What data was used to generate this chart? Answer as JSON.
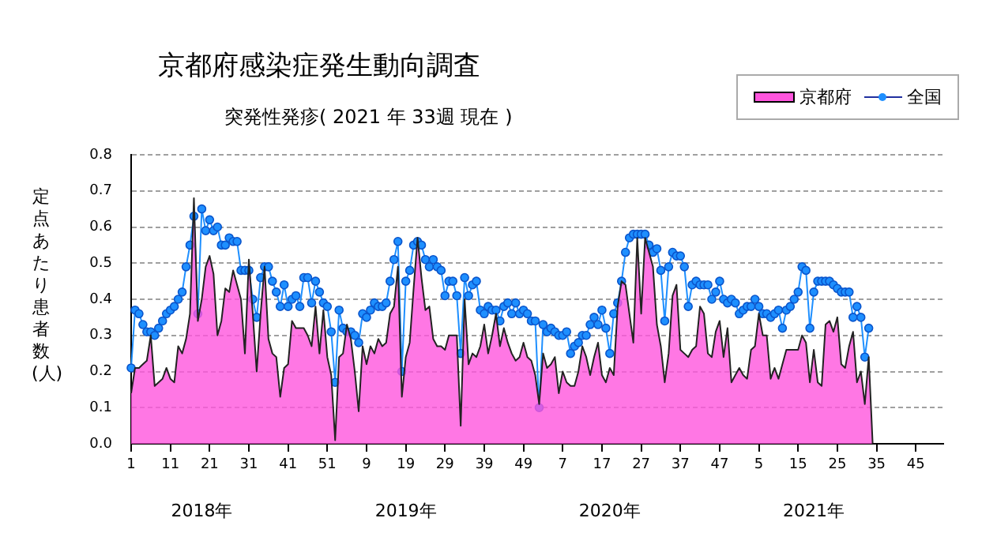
{
  "chart_data": {
    "type": "area",
    "title": "京都府感染症発生動向調査",
    "subtitle": "突発性発疹( 2021 年 33週 現在 )",
    "ylabel": "定点あたり患者数(人)",
    "categories": [
      "1",
      null,
      null,
      null,
      null,
      null,
      null,
      null,
      null,
      null,
      "11",
      null,
      null,
      null,
      null,
      null,
      null,
      null,
      null,
      null,
      "21",
      null,
      null,
      null,
      null,
      null,
      null,
      null,
      null,
      null,
      "31",
      null,
      null,
      null,
      null,
      null,
      null,
      null,
      null,
      null,
      "41",
      null,
      null,
      null,
      null,
      null,
      null,
      null,
      null,
      null,
      "51",
      null,
      null,
      null,
      null,
      null,
      null,
      null,
      null,
      null,
      "9",
      null,
      null,
      null,
      null,
      null,
      null,
      null,
      null,
      null,
      "19",
      null,
      null,
      null,
      null,
      null,
      null,
      null,
      null,
      null,
      "29",
      null,
      null,
      null,
      null,
      null,
      null,
      null,
      null,
      null,
      "39",
      null,
      null,
      null,
      null,
      null,
      null,
      null,
      null,
      null,
      "49",
      null,
      null,
      null,
      null,
      null,
      null,
      null,
      null,
      null,
      "7",
      null,
      null,
      null,
      null,
      null,
      null,
      null,
      null,
      null,
      "17",
      null,
      null,
      null,
      null,
      null,
      null,
      null,
      null,
      null,
      "27",
      null,
      null,
      null,
      null,
      null,
      null,
      null,
      null,
      null,
      "37",
      null,
      null,
      null,
      null,
      null,
      null,
      null,
      null,
      null,
      "47",
      null,
      null,
      null,
      null,
      null,
      null,
      null,
      null,
      null,
      "5",
      null,
      null,
      null,
      null,
      null,
      null,
      null,
      null,
      null,
      "15",
      null,
      null,
      null,
      null,
      null,
      null,
      null,
      null,
      null,
      "25",
      null,
      null,
      null,
      null,
      null,
      null,
      null,
      null,
      null,
      "35",
      null,
      null,
      null,
      null,
      null,
      null,
      null,
      null,
      null,
      "45",
      null,
      null,
      null,
      null,
      null,
      null,
      null
    ],
    "series": [
      {
        "name": "京都府",
        "type": "area",
        "color": "#ff55dd",
        "values": [
          0.14,
          0.21,
          0.21,
          0.22,
          0.23,
          0.3,
          0.16,
          0.17,
          0.18,
          0.21,
          0.18,
          0.17,
          0.27,
          0.25,
          0.29,
          0.36,
          0.68,
          0.34,
          0.4,
          0.49,
          0.52,
          0.47,
          0.3,
          0.34,
          0.43,
          0.42,
          0.48,
          0.44,
          0.4,
          0.25,
          0.51,
          0.36,
          0.2,
          0.36,
          0.49,
          0.29,
          0.25,
          0.24,
          0.13,
          0.21,
          0.22,
          0.34,
          0.32,
          0.32,
          0.32,
          0.3,
          0.27,
          0.38,
          0.25,
          0.37,
          0.24,
          0.19,
          0.01,
          0.24,
          0.25,
          0.33,
          0.29,
          0.2,
          0.09,
          0.27,
          0.22,
          0.27,
          0.25,
          0.29,
          0.27,
          0.28,
          0.36,
          0.38,
          0.49,
          0.13,
          0.24,
          0.28,
          0.43,
          0.57,
          0.46,
          0.37,
          0.38,
          0.29,
          0.27,
          0.27,
          0.26,
          0.3,
          0.3,
          0.3,
          0.05,
          0.4,
          0.22,
          0.25,
          0.24,
          0.27,
          0.33,
          0.25,
          0.3,
          0.36,
          0.27,
          0.32,
          0.28,
          0.25,
          0.23,
          0.24,
          0.28,
          0.24,
          0.23,
          0.19,
          0.11,
          0.25,
          0.21,
          0.22,
          0.24,
          0.14,
          0.2,
          0.17,
          0.16,
          0.16,
          0.2,
          0.27,
          0.24,
          0.19,
          0.24,
          0.28,
          0.19,
          0.17,
          0.21,
          0.19,
          0.38,
          0.45,
          0.44,
          0.36,
          0.28,
          0.57,
          0.36,
          0.57,
          0.53,
          0.49,
          0.33,
          0.27,
          0.17,
          0.25,
          0.41,
          0.44,
          0.26,
          0.25,
          0.24,
          0.26,
          0.27,
          0.38,
          0.36,
          0.25,
          0.24,
          0.31,
          0.34,
          0.24,
          0.32,
          0.17,
          0.19,
          0.21,
          0.19,
          0.18,
          0.26,
          0.27,
          0.36,
          0.3,
          0.3,
          0.18,
          0.21,
          0.18,
          0.22,
          0.26,
          0.26,
          0.26,
          0.26,
          0.3,
          0.28,
          0.17,
          0.26,
          0.17,
          0.16,
          0.33,
          0.34,
          0.31,
          0.35,
          0.22,
          0.21,
          0.27,
          0.31,
          0.17,
          0.2,
          0.11,
          0.24,
          0,
          null,
          null,
          null,
          null,
          null,
          null,
          null,
          null,
          null,
          null,
          null,
          null,
          null,
          null,
          null,
          null,
          null,
          null
        ]
      },
      {
        "name": "全国",
        "type": "line",
        "color": "#1e8fff",
        "marker": "circle",
        "values": [
          0.21,
          0.37,
          0.36,
          0.33,
          0.31,
          0.31,
          0.3,
          0.32,
          0.34,
          0.36,
          0.37,
          0.38,
          0.4,
          0.42,
          0.49,
          0.55,
          0.63,
          0.36,
          0.65,
          0.59,
          0.62,
          0.59,
          0.6,
          0.55,
          0.55,
          0.57,
          0.56,
          0.56,
          0.48,
          0.48,
          0.48,
          0.4,
          0.35,
          0.46,
          0.49,
          0.49,
          0.45,
          0.42,
          0.38,
          0.44,
          0.38,
          0.4,
          0.41,
          0.38,
          0.46,
          0.46,
          0.39,
          0.45,
          0.42,
          0.39,
          0.38,
          0.31,
          0.17,
          0.37,
          0.32,
          0.31,
          0.31,
          0.3,
          0.28,
          0.36,
          0.35,
          0.37,
          0.39,
          0.38,
          0.38,
          0.39,
          0.45,
          0.51,
          0.56,
          0.2,
          0.45,
          0.48,
          0.55,
          0.56,
          0.55,
          0.51,
          0.49,
          0.51,
          0.49,
          0.48,
          0.41,
          0.45,
          0.45,
          0.41,
          0.25,
          0.46,
          0.41,
          0.44,
          0.45,
          0.37,
          0.36,
          0.38,
          0.37,
          0.37,
          0.34,
          0.38,
          0.39,
          0.36,
          0.39,
          0.36,
          0.37,
          0.36,
          0.34,
          0.34,
          0.1,
          0.33,
          0.31,
          0.32,
          0.31,
          0.3,
          0.3,
          0.31,
          0.25,
          0.27,
          0.28,
          0.3,
          0.3,
          0.33,
          0.35,
          0.33,
          0.37,
          0.32,
          0.25,
          0.36,
          0.39,
          0.45,
          0.53,
          0.57,
          0.58,
          0.58,
          0.58,
          0.58,
          0.55,
          0.53,
          0.54,
          0.48,
          0.34,
          0.49,
          0.53,
          0.52,
          0.52,
          0.49,
          0.38,
          0.44,
          0.45,
          0.44,
          0.44,
          0.44,
          0.4,
          0.42,
          0.45,
          0.4,
          0.39,
          0.4,
          0.39,
          0.36,
          0.37,
          0.38,
          0.38,
          0.4,
          0.38,
          0.36,
          0.36,
          0.35,
          0.36,
          0.37,
          0.32,
          0.37,
          0.38,
          0.4,
          0.42,
          0.49,
          0.48,
          0.32,
          0.42,
          0.45,
          0.45,
          0.45,
          0.45,
          0.44,
          0.43,
          0.42,
          0.42,
          0.42,
          0.35,
          0.38,
          0.35,
          0.24,
          0.32,
          null,
          null,
          null,
          null,
          null,
          null,
          null,
          null,
          null,
          null,
          null,
          null,
          null,
          null,
          null,
          null,
          null,
          null,
          null
        ]
      }
    ],
    "ylim": [
      0,
      0.8
    ],
    "yticks": [
      {
        "value": 0,
        "label": "0.0"
      },
      0.1,
      0.2,
      0.3,
      0.4,
      0.5,
      0.6,
      0.7,
      0.8
    ],
    "grid": "y",
    "legend": "top right",
    "annotations": [
      "2018年",
      "2019年",
      "2020年",
      "2021年"
    ]
  }
}
